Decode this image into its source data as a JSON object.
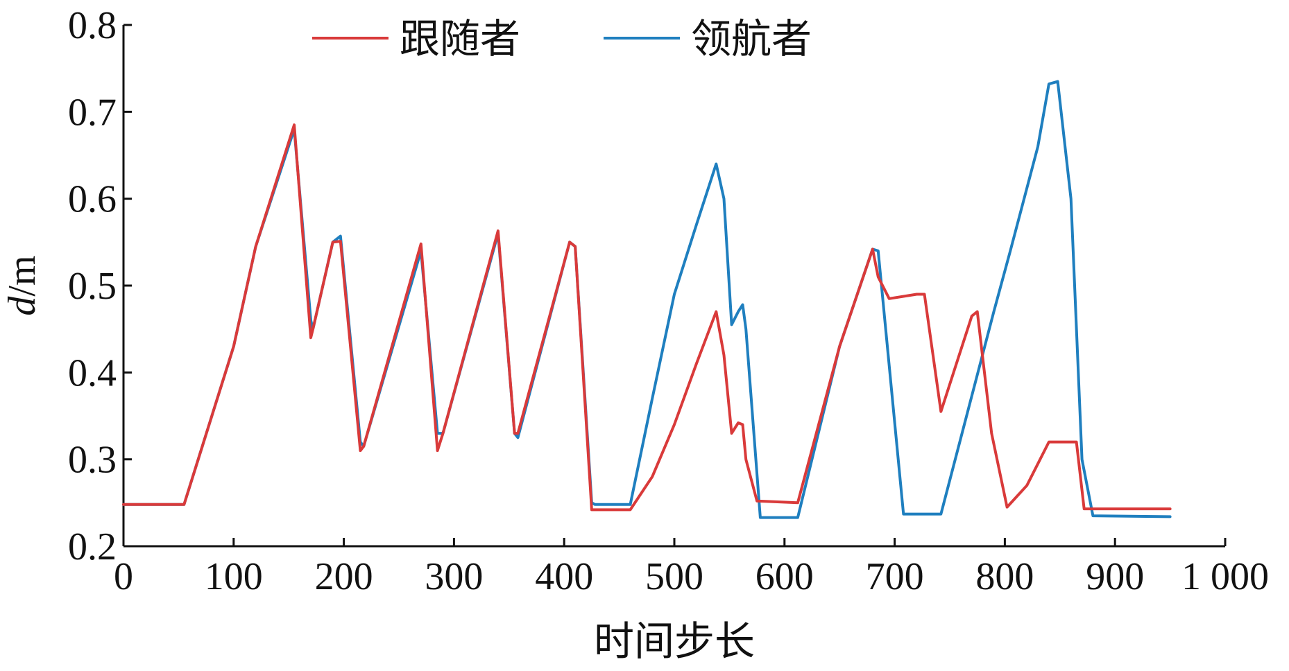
{
  "chart_data": {
    "type": "line",
    "title": "",
    "xlabel": "时间步长",
    "ylabel_var": "d",
    "ylabel_unit": "/m",
    "xlim": [
      0,
      1000
    ],
    "ylim": [
      0.2,
      0.8
    ],
    "xticks": [
      0,
      100,
      200,
      300,
      400,
      500,
      600,
      700,
      800,
      900,
      1000
    ],
    "xtick_labels": [
      "0",
      "100",
      "200",
      "300",
      "400",
      "500",
      "600",
      "700",
      "800",
      "900",
      "1 000"
    ],
    "yticks": [
      0.2,
      0.3,
      0.4,
      0.5,
      0.6,
      0.7,
      0.8
    ],
    "ytick_labels": [
      "0.2",
      "0.3",
      "0.4",
      "0.5",
      "0.6",
      "0.7",
      "0.8"
    ],
    "grid": false,
    "legend_position": "top-center",
    "series": [
      {
        "name": "领航者",
        "color": "#1f7fbf",
        "x": [
          0,
          55,
          100,
          120,
          155,
          170,
          172,
          190,
          197,
          215,
          218,
          270,
          285,
          290,
          340,
          355,
          358,
          405,
          410,
          425,
          428,
          460,
          480,
          500,
          520,
          538,
          545,
          552,
          558,
          562,
          565,
          578,
          612,
          650,
          680,
          685,
          708,
          742,
          790,
          805,
          830,
          840,
          848,
          860,
          870,
          880,
          950
        ],
        "values": [
          0.248,
          0.248,
          0.43,
          0.545,
          0.68,
          0.46,
          0.45,
          0.55,
          0.557,
          0.32,
          0.315,
          0.54,
          0.33,
          0.33,
          0.56,
          0.33,
          0.325,
          0.55,
          0.545,
          0.25,
          0.248,
          0.248,
          0.37,
          0.49,
          0.57,
          0.64,
          0.6,
          0.455,
          0.47,
          0.478,
          0.45,
          0.233,
          0.233,
          0.43,
          0.542,
          0.54,
          0.237,
          0.237,
          0.47,
          0.54,
          0.66,
          0.732,
          0.735,
          0.6,
          0.3,
          0.235,
          0.234
        ]
      },
      {
        "name": "跟随者",
        "color": "#d93a3a",
        "x": [
          0,
          55,
          100,
          120,
          155,
          170,
          172,
          190,
          197,
          215,
          218,
          270,
          285,
          290,
          340,
          355,
          358,
          405,
          410,
          425,
          428,
          460,
          480,
          500,
          520,
          538,
          545,
          552,
          558,
          562,
          565,
          575,
          612,
          650,
          680,
          685,
          695,
          720,
          727,
          742,
          770,
          775,
          788,
          802,
          820,
          840,
          865,
          872,
          950
        ],
        "values": [
          0.248,
          0.248,
          0.43,
          0.545,
          0.685,
          0.44,
          0.45,
          0.55,
          0.551,
          0.31,
          0.315,
          0.548,
          0.31,
          0.33,
          0.563,
          0.33,
          0.33,
          0.55,
          0.545,
          0.242,
          0.242,
          0.242,
          0.28,
          0.34,
          0.41,
          0.47,
          0.42,
          0.33,
          0.342,
          0.34,
          0.3,
          0.252,
          0.25,
          0.43,
          0.542,
          0.51,
          0.485,
          0.49,
          0.49,
          0.355,
          0.465,
          0.47,
          0.33,
          0.245,
          0.27,
          0.32,
          0.32,
          0.243,
          0.243
        ]
      }
    ]
  }
}
